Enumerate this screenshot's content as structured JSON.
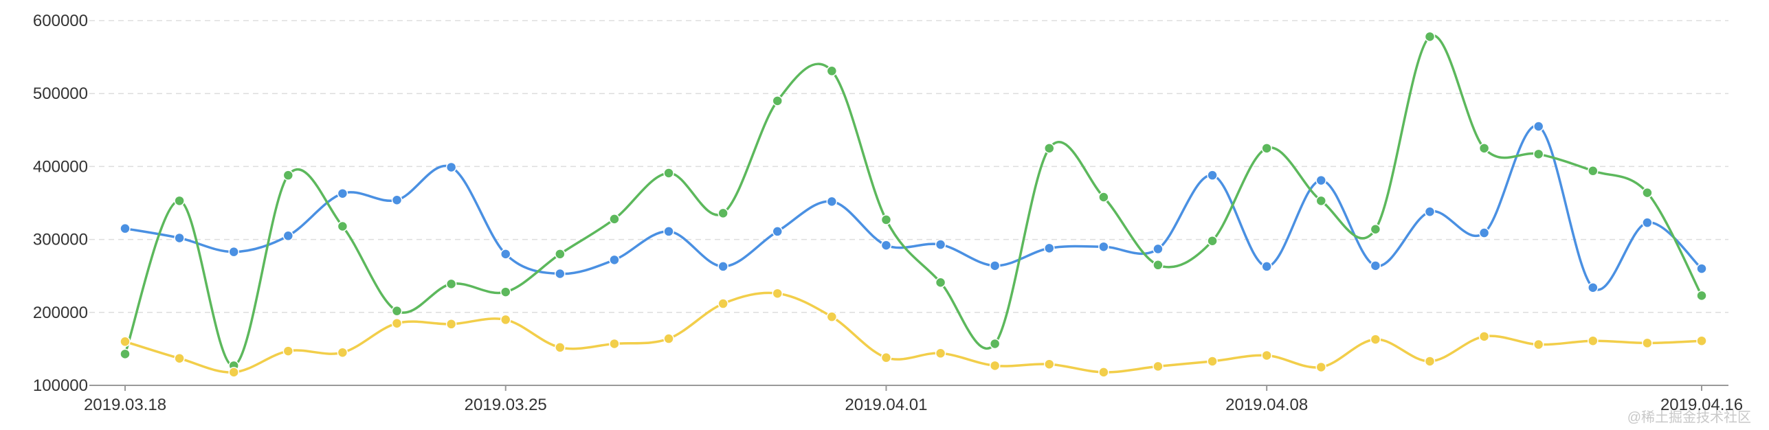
{
  "chart_data": {
    "type": "line",
    "title": "",
    "xlabel": "",
    "ylabel": "",
    "smooth": true,
    "grid": "horizontal-dashed",
    "legend": "none",
    "ylim": [
      100000,
      600000
    ],
    "y_ticks": [
      100000,
      200000,
      300000,
      400000,
      500000,
      600000
    ],
    "y_tick_labels": [
      "100000",
      "200000",
      "300000",
      "400000",
      "500000",
      "600000"
    ],
    "x": [
      "2019.03.18",
      "2019.03.19",
      "2019.03.20",
      "2019.03.21",
      "2019.03.22",
      "2019.03.23",
      "2019.03.24",
      "2019.03.25",
      "2019.03.26",
      "2019.03.27",
      "2019.03.28",
      "2019.03.29",
      "2019.03.30",
      "2019.03.31",
      "2019.04.01",
      "2019.04.02",
      "2019.04.03",
      "2019.04.04",
      "2019.04.05",
      "2019.04.06",
      "2019.04.07",
      "2019.04.08",
      "2019.04.09",
      "2019.04.10",
      "2019.04.11",
      "2019.04.12",
      "2019.04.13",
      "2019.04.14",
      "2019.04.15",
      "2019.04.16"
    ],
    "x_tick_labels": [
      "2019.03.18",
      "2019.03.25",
      "2019.04.01",
      "2019.04.08",
      "2019.04.16"
    ],
    "x_tick_indices": [
      0,
      7,
      14,
      21,
      29
    ],
    "series": [
      {
        "color": "#4A90E2",
        "values": [
          315000,
          302000,
          283000,
          305000,
          363000,
          354000,
          399000,
          280000,
          253000,
          272000,
          311000,
          263000,
          311000,
          352000,
          292000,
          293000,
          264000,
          288000,
          290000,
          287000,
          388000,
          263000,
          381000,
          264000,
          338000,
          309000,
          455000,
          234000,
          323000,
          260000
        ]
      },
      {
        "color": "#5CB85C",
        "values": [
          143000,
          353000,
          127000,
          388000,
          318000,
          202000,
          239000,
          228000,
          280000,
          328000,
          391000,
          336000,
          490000,
          531000,
          327000,
          241000,
          157000,
          425000,
          358000,
          265000,
          298000,
          425000,
          353000,
          314000,
          578000,
          425000,
          417000,
          394000,
          364000,
          223000
        ]
      },
      {
        "color": "#F2CE4A",
        "values": [
          160000,
          137000,
          118000,
          147000,
          145000,
          185000,
          184000,
          190000,
          152000,
          157000,
          164000,
          212000,
          226000,
          194000,
          138000,
          144000,
          127000,
          129000,
          118000,
          126000,
          133000,
          141000,
          125000,
          163000,
          133000,
          167000,
          156000,
          161000,
          158000,
          161000
        ]
      }
    ]
  },
  "watermark": "@稀土掘金技术社区"
}
